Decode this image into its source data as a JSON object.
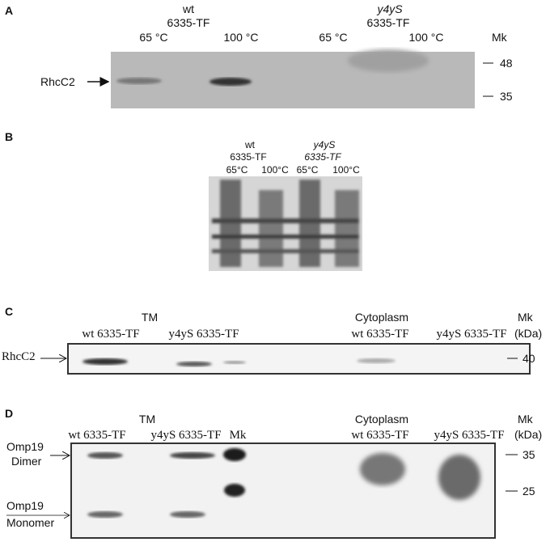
{
  "panel_a": {
    "letter": "A",
    "group1": [
      "wt",
      "6335-TF"
    ],
    "group2": [
      "y4yS",
      "6335-TF"
    ],
    "lanes": [
      "65 °C",
      "100 °C",
      "65 °C",
      "100 °C"
    ],
    "marker": "Mk",
    "band_label": "RhcC2",
    "markers": [
      "48",
      "35"
    ]
  },
  "panel_b": {
    "letter": "B",
    "group1": [
      "wt",
      "6335-TF"
    ],
    "group2": [
      "y4yS",
      "6335-TF"
    ],
    "lanes": [
      "65°C",
      "100°C",
      "65°C",
      "100°C"
    ]
  },
  "panel_c": {
    "letter": "C",
    "sections": [
      "TM",
      "Cytoplasm"
    ],
    "lanes": [
      "wt 6335-TF",
      "y4yS 6335-TF",
      "wt 6335-TF",
      "y4yS 6335-TF"
    ],
    "marker": "Mk",
    "unit": "(kDa)",
    "band_label": "RhcC2",
    "markers": [
      "40"
    ]
  },
  "panel_d": {
    "letter": "D",
    "sections": [
      "TM",
      "Cytoplasm"
    ],
    "lanes": [
      "wt 6335-TF",
      "y4yS 6335-TF",
      "Mk",
      "wt 6335-TF",
      "y4yS 6335-TF"
    ],
    "marker": "Mk",
    "unit": "(kDa)",
    "band_labels": [
      [
        "Omp19",
        "Dimer"
      ],
      [
        "Omp19",
        "Monomer"
      ]
    ],
    "markers": [
      "35",
      "25"
    ]
  }
}
